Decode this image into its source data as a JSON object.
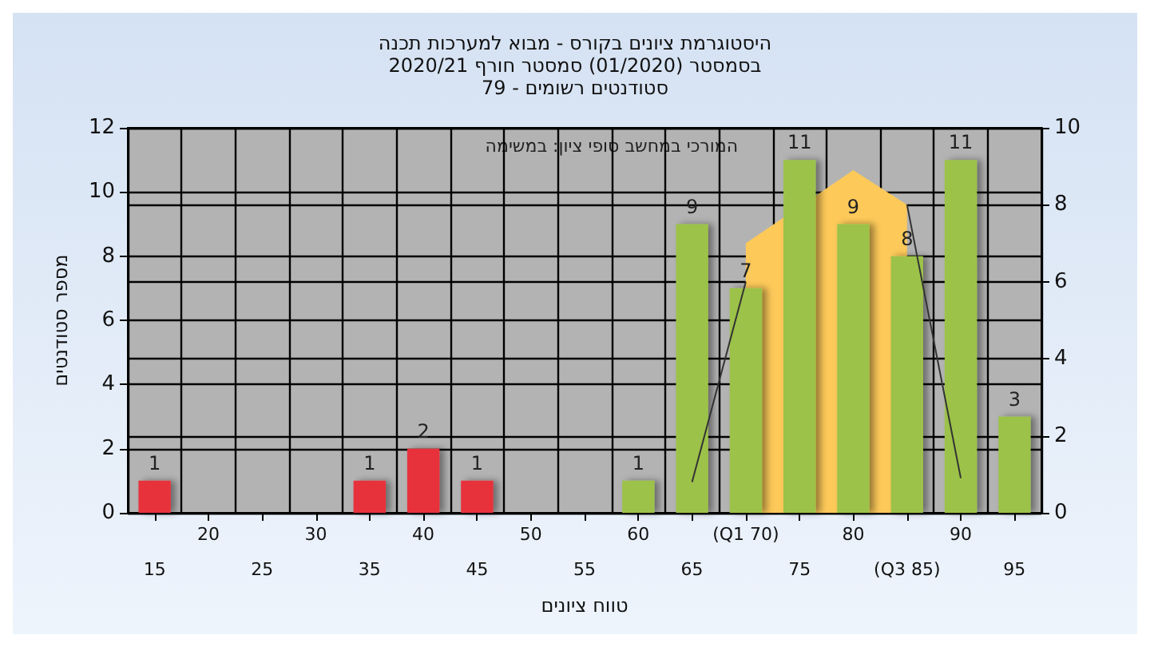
{
  "chart_data": {
    "type": "bar",
    "title": "היסטוגרמת ציונים בקורס - מבוא למערכות תכנה",
    "subtitle": "בסמסטר (01/2020) סמסטר חורף 2020/21\nסטודנטים רשומים - 79",
    "xlabel": "טווח ציונים",
    "ylabel": "מספר סטודנטים",
    "categories": [
      "15",
      "20",
      "25",
      "30",
      "35",
      "40",
      "45",
      "50",
      "55",
      "60",
      "65",
      "(Q1 70)",
      "75",
      "80",
      "(Q3 85)",
      "90",
      "95"
    ],
    "series": [
      {
        "type": "area",
        "axis": "y2",
        "color": "#fdc959",
        "values": [
          null,
          null,
          null,
          null,
          null,
          null,
          null,
          null,
          null,
          null,
          null,
          7,
          null,
          8.9,
          8.0,
          null,
          null
        ]
      },
      {
        "type": "line",
        "axis": "y2",
        "color": "#333333",
        "values": [
          null,
          null,
          null,
          null,
          null,
          null,
          null,
          null,
          null,
          null,
          0.8,
          6.0,
          null,
          null,
          8.0,
          0.9,
          null
        ]
      },
      {
        "value_labels": [
          "1",
          null,
          null,
          null,
          "1",
          "2",
          "1",
          null,
          null,
          "1",
          "9",
          "7",
          "11",
          "9",
          "8",
          "11",
          "3"
        ],
        "colors": [
          "#e8333a",
          null,
          null,
          null,
          "#e8333a",
          "#e8333a",
          "#e8333a",
          null,
          null,
          "#9cc24a",
          "#9cc24a",
          "#9cc24a",
          "#9cc24a",
          "#9cc24a",
          "#9cc24a",
          "#9cc24a",
          "#9cc24a"
        ],
        "values": [
          1,
          null,
          null,
          null,
          1,
          2,
          1,
          null,
          null,
          1,
          9,
          7,
          11,
          9,
          8,
          11,
          3
        ]
      }
    ],
    "ylim": [
      0,
      12
    ],
    "yticks": [
      0,
      2,
      4,
      6,
      8,
      10,
      12
    ],
    "y2lim": [
      0,
      10
    ],
    "y2ticks": [
      0,
      2,
      4,
      6,
      8,
      10
    ],
    "annotations": [
      "המורכי במחשב סופי ציון: במשימה"
    ],
    "grid": true
  }
}
